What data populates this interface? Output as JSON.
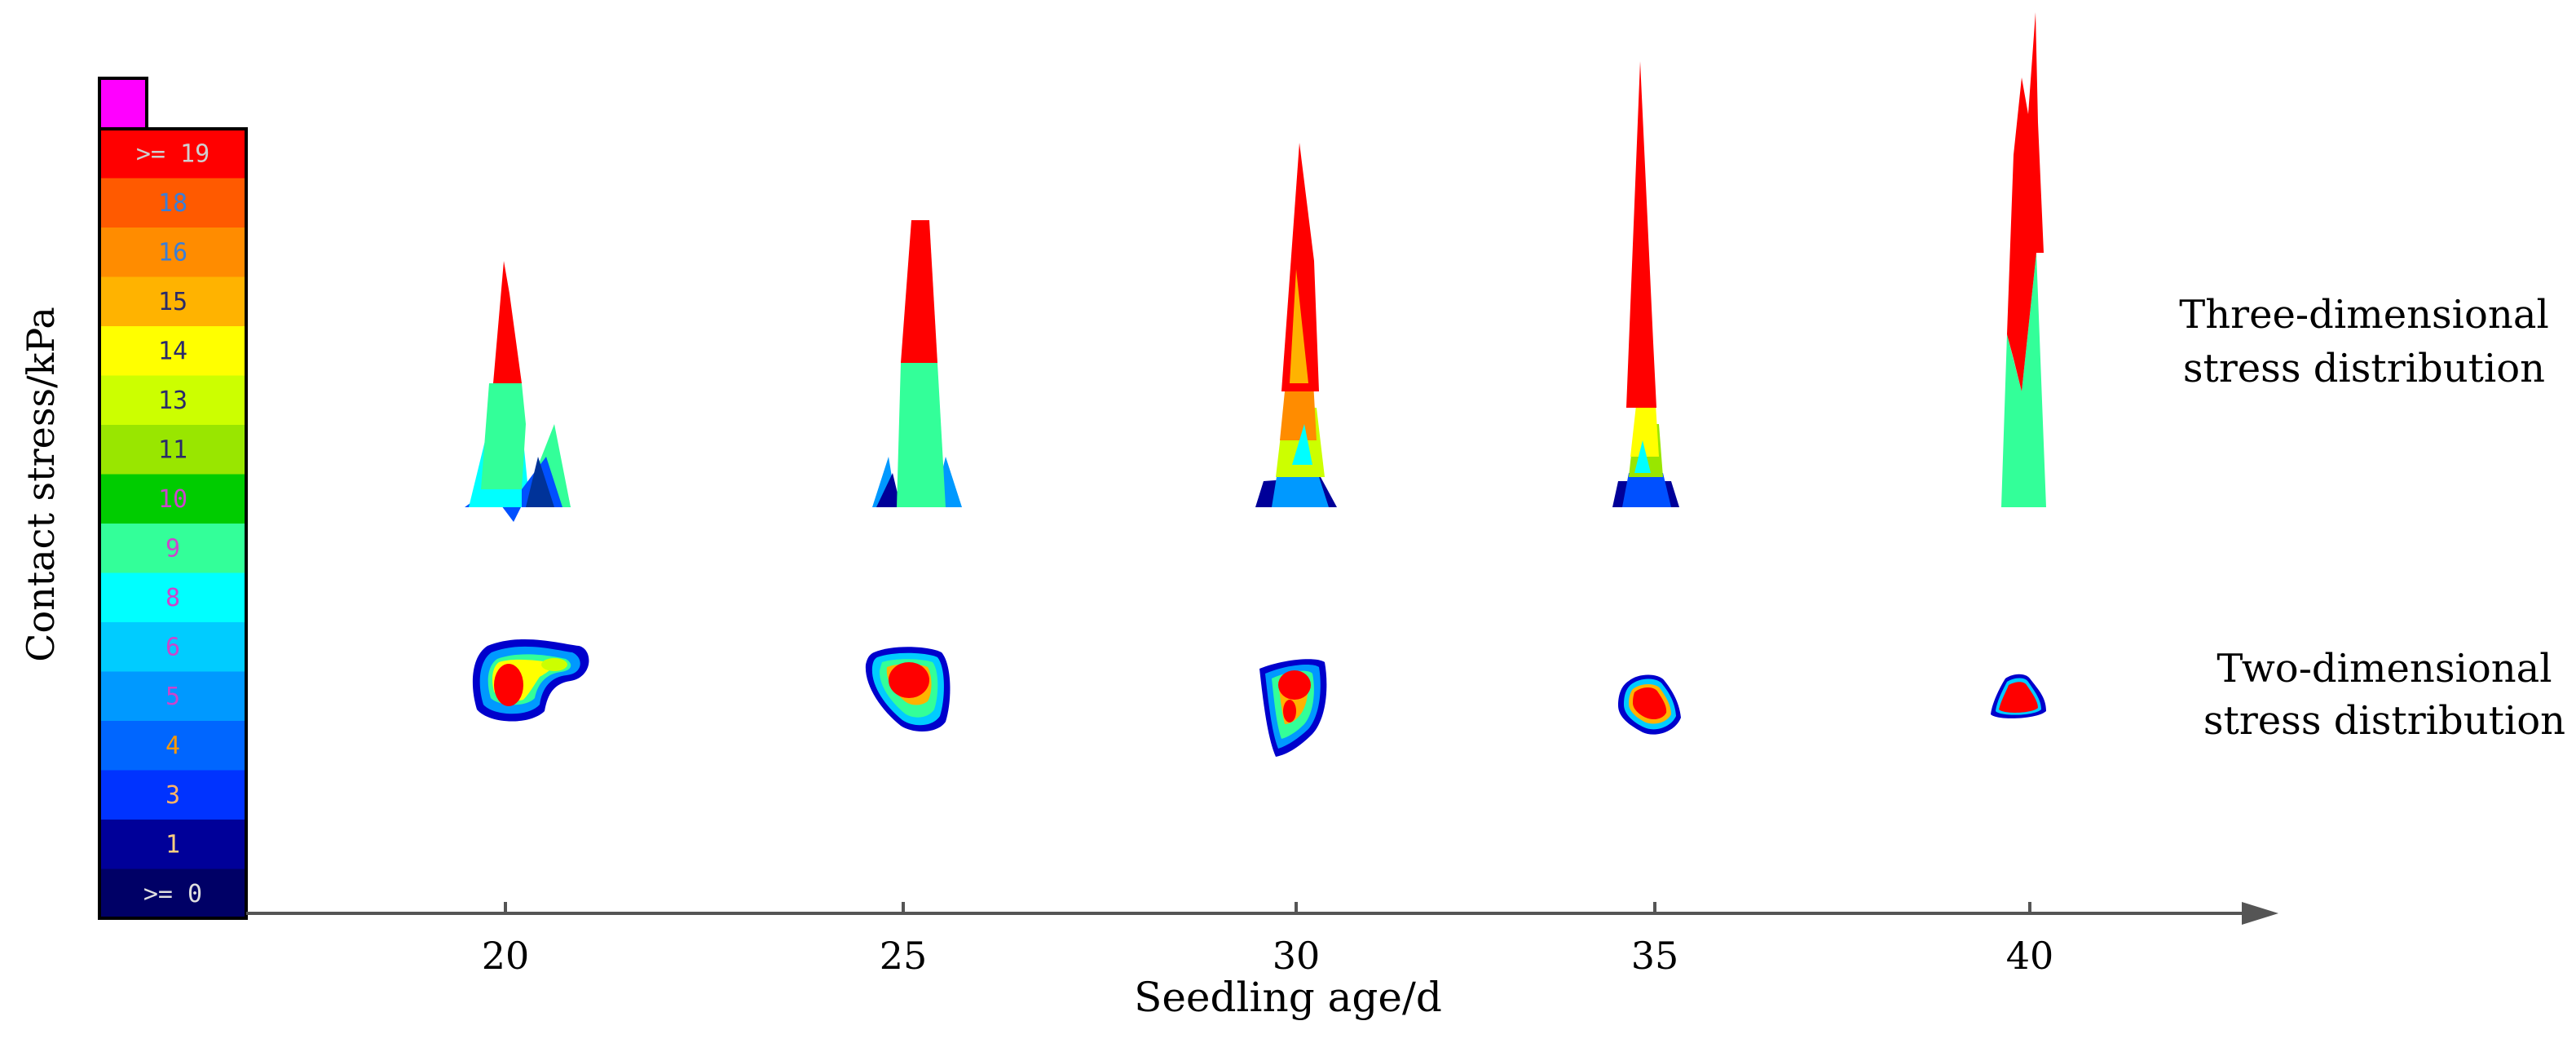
{
  "chart_data": {
    "type": "heatmap",
    "title": "",
    "xlabel": "Seedling age/d",
    "ylabel": "Contact stress/kPa",
    "x": [
      20,
      25,
      30,
      35,
      40
    ],
    "x_tick_labels": [
      "20",
      "25",
      "30",
      "35",
      "40"
    ],
    "row_labels": {
      "three_d": "Three-dimensional stress distribution",
      "two_d": "Two-dimensional stress distribution"
    },
    "row_label_lines": {
      "three_d": [
        "Three-dimensional",
        "stress distribution"
      ],
      "two_d": [
        "Two-dimensional",
        "stress distribution"
      ]
    },
    "color_scale": {
      "labels": [
        ">= 19",
        "18",
        "16",
        "15",
        "14",
        "13",
        "11",
        "10",
        "9",
        "8",
        "6",
        "5",
        "4",
        "3",
        "1",
        ">= 0"
      ],
      "colors": [
        "#ff0000",
        "#ff5a00",
        "#ff8c00",
        "#ffb300",
        "#ffff00",
        "#ccff00",
        "#99e600",
        "#00cc00",
        "#33ff99",
        "#00ffff",
        "#00ccff",
        "#0099ff",
        "#0066ff",
        "#0033ff",
        "#000099",
        "#000066"
      ],
      "label_colors": [
        "#cfcfcf",
        "#3a7ed8",
        "#3a7ed8",
        "#2a2a6a",
        "#2a2a6a",
        "#2a2a6a",
        "#2a2a6a",
        "#cc44cc",
        "#cc44cc",
        "#cc44cc",
        "#cc44cc",
        "#cc44cc",
        "#ff9900",
        "#ffb366",
        "#ffd080",
        "#e0e0e0"
      ],
      "overflow_color": "#ff00ff"
    },
    "peak_stress_3d_relative": [
      0.52,
      0.58,
      0.75,
      0.95,
      1.0
    ]
  }
}
